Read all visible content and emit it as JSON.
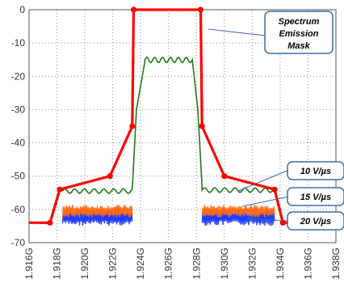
{
  "chart_data": {
    "type": "line",
    "title": "",
    "xlabel": "",
    "ylabel": "",
    "xlim": [
      1.916,
      1.938
    ],
    "ylim": [
      -70,
      0
    ],
    "grid": true,
    "y_ticks": [
      "0",
      "-10",
      "-20",
      "-30",
      "-40",
      "-50",
      "-60",
      "-70"
    ],
    "x_ticks": [
      "1.916G",
      "1.918G",
      "1.920G",
      "1.922G",
      "1.924G",
      "1.926G",
      "1.928G",
      "1.930G",
      "1.932G",
      "1.934G",
      "1.936G",
      "1.938G"
    ],
    "colors": {
      "mask": "#ff0000",
      "slew10": "#1f7a1f",
      "slew15": "#ff6a13",
      "slew20": "#1f3bff",
      "grid": "#8c8c8c"
    },
    "mask": {
      "name": "Spectrum Emission Mask",
      "x": [
        1.916,
        1.9175,
        1.9182,
        1.9218,
        1.9234,
        1.9235,
        1.9283,
        1.9284,
        1.93,
        1.9336,
        1.9342,
        1.938
      ],
      "y": [
        -64,
        -64,
        -54,
        -50,
        -35,
        0,
        0,
        -35,
        -50,
        -54,
        -64,
        -64
      ]
    },
    "annotations": [
      {
        "label": "Spectrum Emission Mask"
      },
      {
        "label": "10 V/µs"
      },
      {
        "label": "15 V/µs"
      },
      {
        "label": "20 V/µs"
      }
    ],
    "series": [
      {
        "key": "slew10",
        "x": [
          1.9184,
          1.9234,
          1.9237,
          1.9243,
          1.9277,
          1.9281,
          1.9284,
          1.9336
        ],
        "base_left": -54.5,
        "peak": -14.5,
        "ripple": 0.8,
        "noise": 0.7
      },
      {
        "key": "slew15",
        "x": [
          1.9184,
          1.9234,
          1.9284,
          1.9336
        ],
        "level": -60.5,
        "noise": 1.6
      },
      {
        "key": "slew20",
        "x": [
          1.9184,
          1.9234,
          1.9284,
          1.9336
        ],
        "level": -62.5,
        "noise": 2.0
      }
    ]
  }
}
